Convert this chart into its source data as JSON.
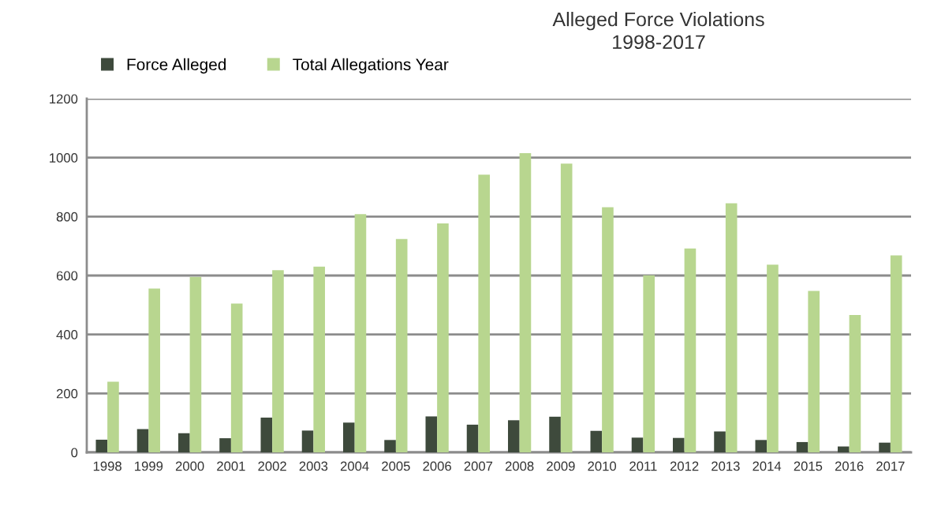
{
  "chart_data": {
    "type": "bar",
    "title": "Alleged Force Violations\n1998-2017",
    "categories": [
      "1998",
      "1999",
      "2000",
      "2001",
      "2002",
      "2003",
      "2004",
      "2005",
      "2006",
      "2007",
      "2008",
      "2009",
      "2010",
      "2011",
      "2012",
      "2013",
      "2014",
      "2015",
      "2016",
      "2017"
    ],
    "series": [
      {
        "name": "Force Alleged",
        "color": "#3e4a3c",
        "values": [
          43,
          79,
          65,
          48,
          118,
          74,
          101,
          42,
          122,
          94,
          109,
          121,
          73,
          50,
          49,
          71,
          42,
          35,
          20,
          33
        ]
      },
      {
        "name": "Total Allegations Year",
        "color": "#b8d68f",
        "values": [
          240,
          556,
          595,
          505,
          618,
          630,
          808,
          724,
          777,
          942,
          1015,
          980,
          832,
          601,
          692,
          845,
          637,
          548,
          466,
          668
        ]
      }
    ],
    "ylim": [
      0,
      1200
    ],
    "yticks": [
      0,
      200,
      400,
      600,
      800,
      1000,
      1200
    ],
    "grid": "y",
    "legend": "top left"
  }
}
